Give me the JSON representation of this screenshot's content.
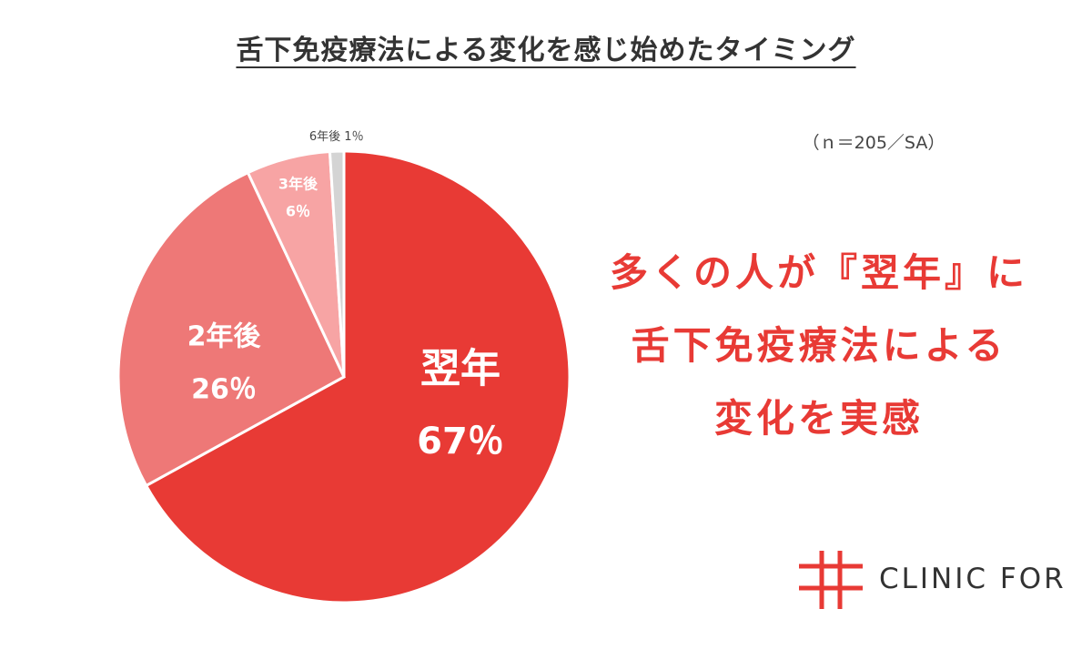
{
  "header": {
    "title": "舌下免疫療法による変化を感じ始めたタイミング",
    "sample_note": "（ｎ＝205／SA）"
  },
  "headline": {
    "line1": "多くの人が『翌年』に",
    "line2": "舌下免疫療法による",
    "line3": "変化を実感"
  },
  "brand": {
    "logo_text": "CLINIC FOR",
    "color": "#e83a35"
  },
  "chart_data": {
    "type": "pie",
    "title": "舌下免疫療法による変化を感じ始めたタイミング",
    "slices": [
      {
        "label": "翌年",
        "value": 67,
        "value_label": "67％",
        "color": "#e83a35"
      },
      {
        "label": "2年後",
        "value": 26,
        "value_label": "26％",
        "color": "#ee7877"
      },
      {
        "label": "3年後",
        "value": 6,
        "value_label": "6％",
        "color": "#f7a4a4"
      },
      {
        "label": "6年後",
        "value": 1,
        "value_label": "1％",
        "color": "#d4d4d4"
      }
    ],
    "start_angle_deg": 0,
    "direction": "clockwise",
    "total": 100
  }
}
